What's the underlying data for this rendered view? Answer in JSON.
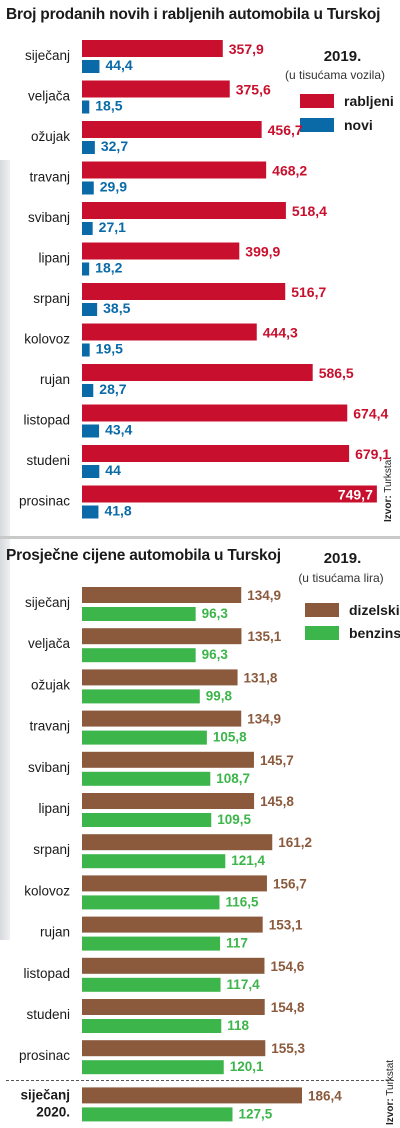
{
  "chart_data": [
    {
      "type": "bar",
      "title": "Broj prodanih novih i rabljenih automobila u Turskoj",
      "year": "2019.",
      "unit": "(u tisućama vozila)",
      "source_label": "Izvor:",
      "source": "Turkstat",
      "categories": [
        "siječanj",
        "veljača",
        "ožujak",
        "travanj",
        "svibanj",
        "lipanj",
        "srpanj",
        "kolovoz",
        "rujan",
        "listopad",
        "studeni",
        "prosinac"
      ],
      "series": [
        {
          "name": "rabljeni",
          "color": "#c8102e",
          "values": [
            357.9,
            375.6,
            456.7,
            468.2,
            518.4,
            399.9,
            516.7,
            444.3,
            586.5,
            674.4,
            679.1,
            749.7
          ],
          "labels": [
            "357,9",
            "375,6",
            "456,7",
            "468,2",
            "518,4",
            "399,9",
            "516,7",
            "444,3",
            "586,5",
            "674,4",
            "679,1",
            "749,7"
          ]
        },
        {
          "name": "novi",
          "color": "#0a6aa8",
          "values": [
            44.4,
            18.5,
            32.7,
            29.9,
            27.1,
            18.2,
            38.5,
            19.5,
            28.7,
            43.4,
            44,
            41.8
          ],
          "labels": [
            "44,4",
            "18,5",
            "32,7",
            "29,9",
            "27,1",
            "18,2",
            "38,5",
            "19,5",
            "28,7",
            "43,4",
            "44",
            "41,8"
          ]
        }
      ],
      "xlim": [
        0,
        750
      ]
    },
    {
      "type": "bar",
      "title": "Prosječne cijene automobila u Turskoj",
      "year": "2019.",
      "unit": "(u tisućama lira)",
      "source_label": "Izvor:",
      "source": "Turkstat",
      "categories": [
        "siječanj",
        "veljača",
        "ožujak",
        "travanj",
        "svibanj",
        "lipanj",
        "srpanj",
        "kolovoz",
        "rujan",
        "listopad",
        "studeni",
        "prosinac",
        "siječanj 2020."
      ],
      "series": [
        {
          "name": "dizelski",
          "color": "#8b5a3c",
          "values": [
            134.9,
            135.1,
            131.8,
            134.9,
            145.7,
            145.8,
            161.2,
            156.7,
            153.1,
            154.6,
            154.8,
            155.3,
            186.4
          ],
          "labels": [
            "134,9",
            "135,1",
            "131,8",
            "134,9",
            "145,7",
            "145,8",
            "161,2",
            "156,7",
            "153,1",
            "154,6",
            "154,8",
            "155,3",
            "186,4"
          ]
        },
        {
          "name": "benzinski",
          "color": "#3cb54a",
          "values": [
            96.3,
            96.3,
            99.8,
            105.8,
            108.7,
            109.5,
            121.4,
            116.5,
            117,
            117.4,
            118,
            120.1,
            127.5
          ],
          "labels": [
            "96,3",
            "96,3",
            "99,8",
            "105,8",
            "108,7",
            "109,5",
            "121,4",
            "116,5",
            "117",
            "117,4",
            "118",
            "120,1",
            "127,5"
          ]
        }
      ],
      "xlim": [
        0,
        186.4
      ]
    }
  ]
}
